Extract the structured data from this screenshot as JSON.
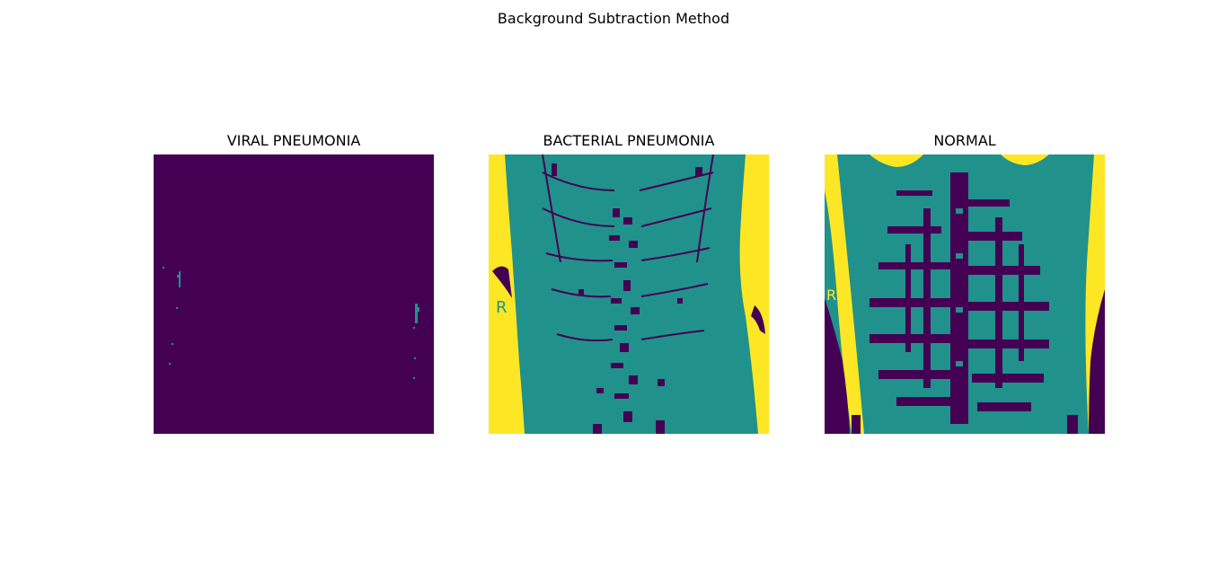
{
  "figure": {
    "suptitle": "Background Subtraction Method"
  },
  "colors": {
    "dark_purple": "#440154",
    "teal": "#21918c",
    "yellow": "#fde725",
    "background": "#ffffff"
  },
  "panels": [
    {
      "title": "VIRAL PNEUMONIA",
      "dominant_color": "#440154",
      "content": "mostly-dark-purple-with-sparse-teal-specks"
    },
    {
      "title": "BACTERIAL PNEUMONIA",
      "dominant_color": "#21918c",
      "content": "teal-chest-x-ray-with-purple-rib-and-spine-pattern-and-yellow-sides",
      "marker_letter": "R"
    },
    {
      "title": "NORMAL",
      "dominant_color": "#21918c",
      "content": "teal-chest-x-ray-with-dense-purple-rib-texture-yellow-and-purple-edges",
      "marker_letter": "R"
    }
  ]
}
